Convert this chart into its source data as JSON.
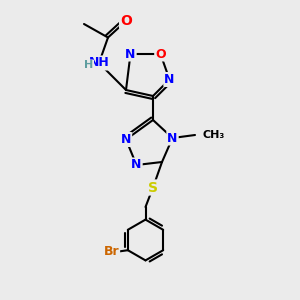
{
  "bg_color": "#ebebeb",
  "atom_colors": {
    "N": "#0000ff",
    "O": "#ff0000",
    "S": "#cccc00",
    "Br": "#cc6600",
    "C": "#000000",
    "H": "#5f9ea0"
  },
  "bond_color": "#000000",
  "bond_width": 1.5
}
